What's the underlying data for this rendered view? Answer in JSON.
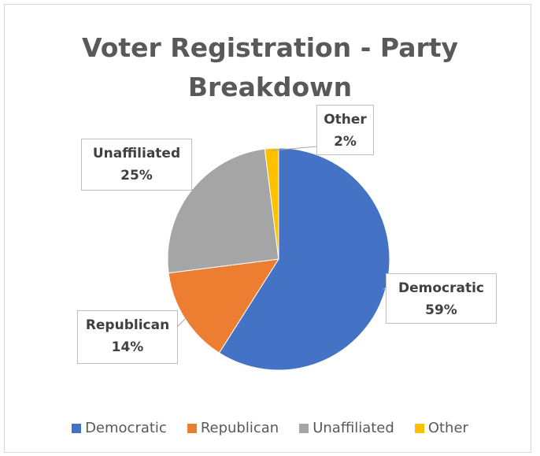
{
  "chart_data": {
    "type": "pie",
    "title_line1": "Voter Registration - Party",
    "title_line2": "Breakdown",
    "slices": [
      {
        "name": "Democratic",
        "value": 59,
        "label": "59%",
        "color": "#4472c4"
      },
      {
        "name": "Republican",
        "value": 14,
        "label": "14%",
        "color": "#ed7d31"
      },
      {
        "name": "Unaffiliated",
        "value": 25,
        "label": "25%",
        "color": "#a5a5a5"
      },
      {
        "name": "Other",
        "value": 2,
        "label": "2%",
        "color": "#ffc000"
      }
    ],
    "legend_position": "bottom"
  }
}
